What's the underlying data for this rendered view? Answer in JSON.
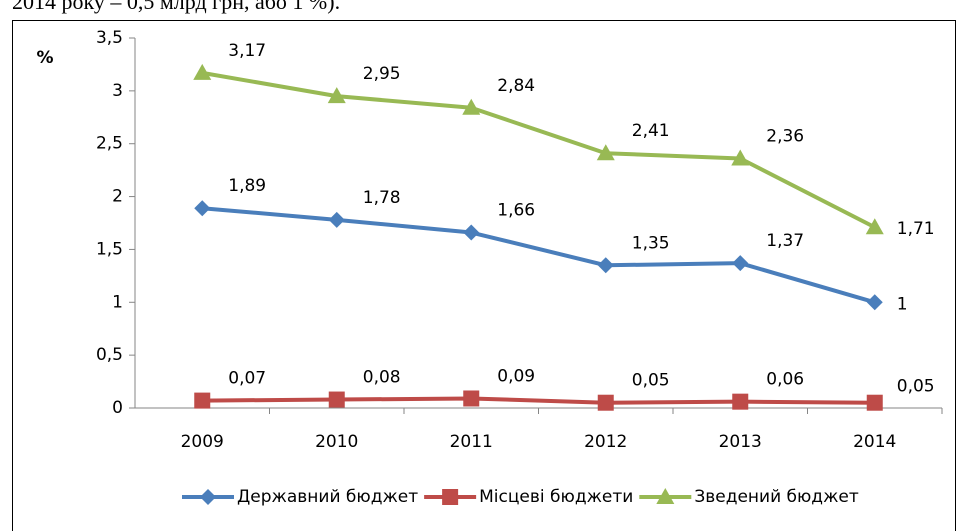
{
  "caption": "2014 року – 0,5 млрд грн, або 1 %).",
  "chart_data": {
    "type": "line",
    "y_label": "%",
    "categories": [
      "2009",
      "2010",
      "2011",
      "2012",
      "2013",
      "2014"
    ],
    "ylim": [
      0,
      3.5
    ],
    "yticks": [
      0,
      {
        "value": 0.5,
        "label": "0,5"
      },
      1,
      {
        "value": 1.5,
        "label": "1,5"
      },
      2,
      {
        "value": 2.5,
        "label": "2,5"
      },
      3,
      {
        "value": 3.5,
        "label": "3,5"
      }
    ],
    "grid": false,
    "legend": "bottom",
    "series": [
      {
        "name": "Державний бюджет",
        "color": "#4a7ebb",
        "marker": "diamond",
        "values": [
          1.89,
          1.78,
          1.66,
          1.35,
          1.37,
          1
        ],
        "value_labels": [
          "1,89",
          "1,78",
          "1,66",
          "1,35",
          "1,37",
          "1"
        ]
      },
      {
        "name": "Місцеві бюджети",
        "color": "#be4b48",
        "marker": "square",
        "values": [
          0.07,
          0.08,
          0.09,
          0.05,
          0.06,
          0.05
        ],
        "value_labels": [
          "0,07",
          "0,08",
          "0,09",
          "0,05",
          "0,06",
          "0,05"
        ]
      },
      {
        "name": "Зведений бюджет",
        "color": "#98b954",
        "marker": "triangle",
        "values": [
          3.17,
          2.95,
          2.84,
          2.41,
          2.36,
          1.71
        ],
        "value_labels": [
          "3,17",
          "2,95",
          "2,84",
          "2,41",
          "2,36",
          "1,71"
        ]
      }
    ]
  }
}
